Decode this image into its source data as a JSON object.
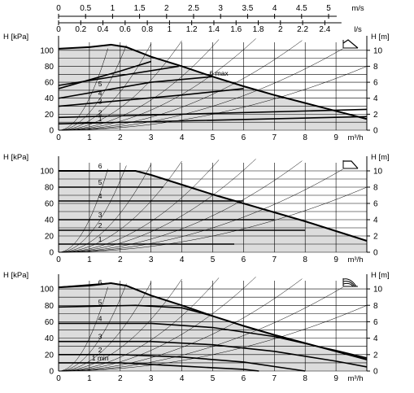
{
  "chart_data": {
    "type": "line",
    "description_units": {
      "x_main": "m³/h",
      "y_left": "H [kPa]",
      "y_right": "H [m]"
    },
    "top_axes": {
      "ms": {
        "unit": "m/s",
        "ticks": [
          "0",
          "0.5",
          "1",
          "1.5",
          "2",
          "2.5",
          "3",
          "3.5",
          "4",
          "4.5",
          "5"
        ]
      },
      "ls": {
        "unit": "l/s",
        "ticks": [
          "0",
          "0.2",
          "0.4",
          "0.6",
          "0.8",
          "1",
          "1.2",
          "1.4",
          "1.6",
          "1.8",
          "2",
          "2.2",
          "2.4"
        ]
      }
    },
    "panels": [
      {
        "mode": "proportional pressure",
        "xlabel": "m³/h",
        "ylabel_left": "H [kPa]",
        "ylabel_right": "H [m]",
        "xlim": [
          0,
          10
        ],
        "ylim": [
          0,
          110
        ],
        "xticks": [
          "0",
          "1",
          "2",
          "3",
          "4",
          "5",
          "6",
          "7",
          "8",
          "9"
        ],
        "yticks_left": [
          "0",
          "20",
          "40",
          "60",
          "80",
          "100"
        ],
        "yticks_right": [
          "0",
          "2",
          "4",
          "6",
          "8",
          "10"
        ],
        "max_curve": [
          [
            0,
            102
          ],
          [
            1,
            104
          ],
          [
            1.7,
            107
          ],
          [
            2.2,
            104
          ],
          [
            3,
            92
          ],
          [
            4,
            80
          ],
          [
            5,
            67
          ],
          [
            6,
            55
          ],
          [
            7,
            44
          ],
          [
            8,
            34
          ],
          [
            9,
            24
          ],
          [
            10,
            14
          ]
        ],
        "series": [
          {
            "name": "1",
            "values": [
              [
                0,
                8
              ],
              [
                10,
                17
              ]
            ]
          },
          {
            "name": "2",
            "values": [
              [
                0,
                16
              ],
              [
                10,
                26
              ]
            ]
          },
          {
            "name": "3",
            "values": [
              [
                0,
                30
              ],
              [
                4,
                44
              ],
              [
                6,
                52
              ]
            ]
          },
          {
            "name": "4",
            "values": [
              [
                0,
                40
              ],
              [
                3,
                60
              ],
              [
                5,
                67
              ]
            ]
          },
          {
            "name": "5",
            "values": [
              [
                0,
                52
              ],
              [
                2,
                74
              ],
              [
                3,
                86
              ]
            ]
          },
          {
            "name": "6 max",
            "values": [
              [
                0,
                56
              ],
              [
                3.9,
                80
              ]
            ]
          }
        ]
      },
      {
        "mode": "constant pressure",
        "xlabel": "m³/h",
        "ylabel_left": "H [kPa]",
        "ylabel_right": "H [m]",
        "xlim": [
          0,
          10
        ],
        "ylim": [
          0,
          110
        ],
        "xticks": [
          "0",
          "1",
          "2",
          "3",
          "4",
          "5",
          "6",
          "7",
          "8",
          "9"
        ],
        "yticks_left": [
          "0",
          "20",
          "40",
          "60",
          "80",
          "100"
        ],
        "yticks_right": [
          "0",
          "2",
          "4",
          "6",
          "8",
          "10"
        ],
        "max_curve": [
          [
            0,
            100
          ],
          [
            2.5,
            100
          ],
          [
            3,
            95
          ],
          [
            4,
            83
          ],
          [
            5,
            71
          ],
          [
            6,
            60
          ],
          [
            7,
            49
          ],
          [
            8,
            38
          ],
          [
            9,
            26
          ],
          [
            10,
            14
          ]
        ],
        "series": [
          {
            "name": "1",
            "values": [
              [
                0,
                10
              ],
              [
                5.7,
                10
              ]
            ]
          },
          {
            "name": "2",
            "values": [
              [
                0,
                27
              ],
              [
                8,
                27
              ]
            ]
          },
          {
            "name": "3",
            "values": [
              [
                0,
                40
              ],
              [
                7,
                40
              ]
            ]
          },
          {
            "name": "4",
            "values": [
              [
                0,
                63
              ],
              [
                6,
                63
              ]
            ]
          },
          {
            "name": "5",
            "values": [
              [
                0,
                80
              ],
              [
                3.4,
                80
              ]
            ]
          },
          {
            "name": "6",
            "values": [
              [
                0,
                100
              ],
              [
                2.5,
                100
              ]
            ]
          }
        ]
      },
      {
        "mode": "constant curve",
        "xlabel": "m³/h",
        "ylabel_left": "H [kPa]",
        "ylabel_right": "H [m]",
        "xlim": [
          0,
          10
        ],
        "ylim": [
          0,
          110
        ],
        "xticks": [
          "0",
          "1",
          "2",
          "3",
          "4",
          "5",
          "6",
          "7",
          "8",
          "9"
        ],
        "yticks_left": [
          "0",
          "20",
          "40",
          "60",
          "80",
          "100"
        ],
        "yticks_right": [
          "0",
          "2",
          "4",
          "6",
          "8",
          "10"
        ],
        "max_curve": [
          [
            0,
            102
          ],
          [
            1,
            104
          ],
          [
            1.7,
            107
          ],
          [
            2.2,
            104
          ],
          [
            3,
            92
          ],
          [
            4,
            80
          ],
          [
            5,
            67
          ],
          [
            6,
            55
          ],
          [
            7,
            44
          ],
          [
            8,
            34
          ],
          [
            9,
            24
          ],
          [
            10,
            14
          ]
        ],
        "series": [
          {
            "name": "1 min",
            "values": [
              [
                0,
                10
              ],
              [
                2,
                10
              ],
              [
                4,
                6
              ],
              [
                6,
                2
              ],
              [
                6.5,
                0
              ]
            ]
          },
          {
            "name": "2",
            "values": [
              [
                0,
                20
              ],
              [
                2,
                20
              ],
              [
                4,
                17
              ],
              [
                6,
                11
              ],
              [
                8,
                0
              ]
            ]
          },
          {
            "name": "3",
            "values": [
              [
                0,
                36
              ],
              [
                3,
                36
              ],
              [
                5,
                32
              ],
              [
                7,
                24
              ],
              [
                9,
                12
              ],
              [
                10,
                5
              ]
            ]
          },
          {
            "name": "4",
            "values": [
              [
                0,
                58
              ],
              [
                3,
                58
              ],
              [
                5,
                53
              ],
              [
                7,
                42
              ],
              [
                9,
                25
              ],
              [
                10,
                16
              ]
            ]
          },
          {
            "name": "5",
            "values": [
              [
                0,
                78
              ],
              [
                2.5,
                80
              ],
              [
                4,
                77
              ],
              [
                5,
                67
              ]
            ]
          },
          {
            "name": "6",
            "values": [
              [
                0,
                102
              ],
              [
                1.7,
                107
              ],
              [
                2.2,
                104
              ],
              [
                3,
                92
              ]
            ]
          }
        ]
      }
    ]
  }
}
